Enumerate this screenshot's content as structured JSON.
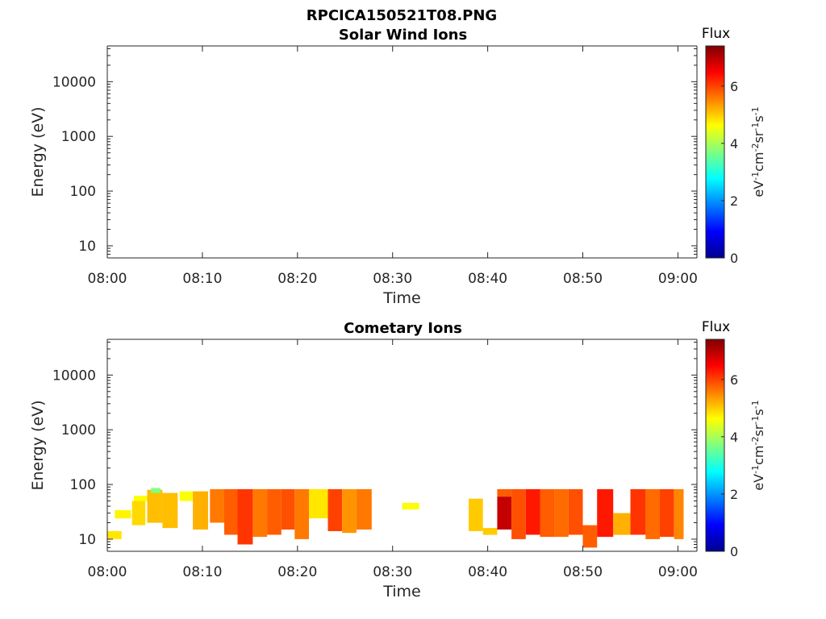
{
  "figure": {
    "title": "RPCICA150521T08.PNG"
  },
  "chart_data": [
    {
      "type": "heatmap",
      "title": "Solar Wind Ions",
      "xlabel": "Time",
      "ylabel": "Energy (eV)",
      "x_ticks": [
        "08:00",
        "08:10",
        "08:20",
        "08:30",
        "08:40",
        "08:50",
        "09:00"
      ],
      "y_ticks": [
        "10",
        "100",
        "1000",
        "10000"
      ],
      "y_scale": "log",
      "xlim_minutes": [
        0,
        62
      ],
      "ylim": [
        6,
        45000
      ],
      "colorbar": {
        "title": "Flux",
        "units": "eV-1cm-2sr-1s-1",
        "ticks": [
          "0",
          "2",
          "4",
          "6"
        ],
        "range": [
          0,
          7.4
        ]
      },
      "cells": []
    },
    {
      "type": "heatmap",
      "title": "Cometary Ions",
      "xlabel": "Time",
      "ylabel": "Energy (eV)",
      "x_ticks": [
        "08:00",
        "08:10",
        "08:20",
        "08:30",
        "08:40",
        "08:50",
        "09:00"
      ],
      "y_ticks": [
        "10",
        "100",
        "1000",
        "10000"
      ],
      "y_scale": "log",
      "xlim_minutes": [
        0,
        62
      ],
      "ylim": [
        6,
        45000
      ],
      "colorbar": {
        "title": "Flux",
        "units": "eV-1cm-2sr-1s-1",
        "ticks": [
          "0",
          "2",
          "4",
          "6"
        ],
        "range": [
          0,
          7.4
        ]
      },
      "cells": [
        [
          0.0,
          1.5,
          10,
          14,
          4.8
        ],
        [
          0.8,
          2.5,
          24,
          34,
          4.7
        ],
        [
          2.6,
          4.0,
          18,
          50,
          4.9
        ],
        [
          2.8,
          4.2,
          50,
          62,
          4.6
        ],
        [
          4.2,
          5.8,
          20,
          80,
          5.1
        ],
        [
          4.6,
          5.6,
          70,
          86,
          3.7
        ],
        [
          5.8,
          7.4,
          16,
          70,
          5.1
        ],
        [
          7.6,
          9.0,
          50,
          75,
          4.6
        ],
        [
          9.0,
          10.6,
          15,
          75,
          5.2
        ],
        [
          10.8,
          12.3,
          20,
          82,
          5.6
        ],
        [
          12.3,
          13.7,
          12,
          82,
          5.8
        ],
        [
          13.7,
          15.3,
          8,
          82,
          6.1
        ],
        [
          15.3,
          16.8,
          11,
          82,
          5.6
        ],
        [
          16.8,
          18.3,
          12,
          82,
          5.8
        ],
        [
          18.3,
          19.7,
          15,
          82,
          5.9
        ],
        [
          19.7,
          21.2,
          10,
          82,
          5.6
        ],
        [
          21.2,
          23.2,
          24,
          82,
          4.8
        ],
        [
          23.2,
          24.7,
          14,
          82,
          6.0
        ],
        [
          24.7,
          26.2,
          13,
          82,
          5.4
        ],
        [
          26.2,
          27.8,
          15,
          82,
          5.6
        ],
        [
          31.0,
          32.8,
          35,
          46,
          4.6
        ],
        [
          38.0,
          39.5,
          14,
          55,
          5.0
        ],
        [
          39.5,
          41.0,
          12,
          16,
          5.0
        ],
        [
          41.0,
          42.5,
          15,
          60,
          6.9
        ],
        [
          41.0,
          42.5,
          60,
          82,
          5.8
        ],
        [
          42.5,
          44.0,
          10,
          82,
          5.9
        ],
        [
          44.0,
          45.5,
          12,
          82,
          6.3
        ],
        [
          45.5,
          47.0,
          11,
          82,
          5.8
        ],
        [
          47.0,
          48.5,
          11,
          82,
          5.7
        ],
        [
          48.5,
          50.0,
          12,
          82,
          5.9
        ],
        [
          50.0,
          51.5,
          7,
          18,
          5.8
        ],
        [
          51.5,
          53.2,
          11,
          82,
          6.3
        ],
        [
          53.2,
          55.0,
          12,
          30,
          5.2
        ],
        [
          55.0,
          56.6,
          12,
          82,
          6.1
        ],
        [
          56.6,
          58.1,
          10,
          82,
          5.7
        ],
        [
          58.1,
          59.6,
          11,
          82,
          6.0
        ],
        [
          59.6,
          60.6,
          10,
          82,
          5.5
        ]
      ]
    }
  ]
}
